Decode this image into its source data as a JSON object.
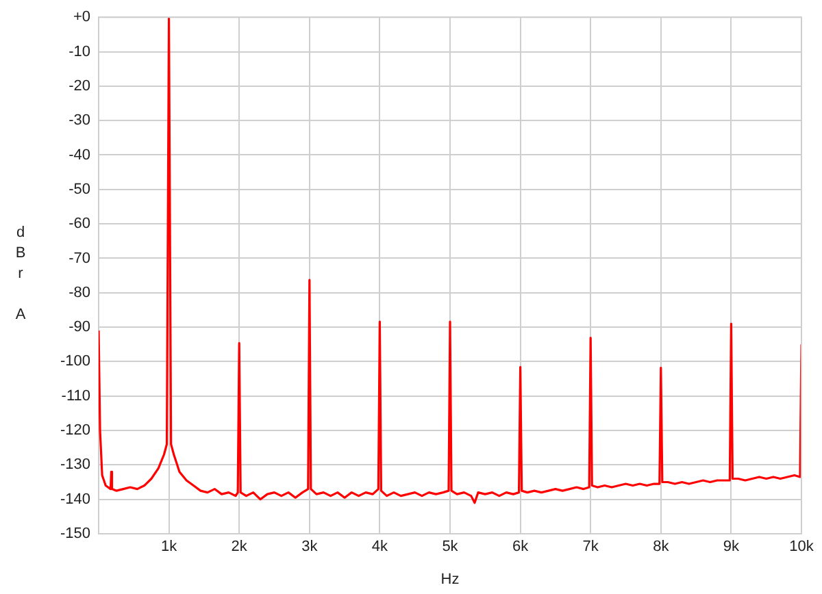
{
  "chart_data": {
    "type": "line",
    "xlabel": "Hz",
    "ylabel": "dBr A",
    "color": "#ff0000",
    "marker": "none",
    "grid": true,
    "xlim": [
      0,
      10000
    ],
    "ylim": [
      -150,
      0
    ],
    "xticks": [
      {
        "value": 1000,
        "label": "1k"
      },
      {
        "value": 2000,
        "label": "2k"
      },
      {
        "value": 3000,
        "label": "3k"
      },
      {
        "value": 4000,
        "label": "4k"
      },
      {
        "value": 5000,
        "label": "5k"
      },
      {
        "value": 6000,
        "label": "6k"
      },
      {
        "value": 7000,
        "label": "7k"
      },
      {
        "value": 8000,
        "label": "8k"
      },
      {
        "value": 9000,
        "label": "9k"
      },
      {
        "value": 10000,
        "label": "10k"
      }
    ],
    "yticks": [
      {
        "value": 0,
        "label": "+0"
      },
      -10,
      -20,
      -30,
      -40,
      -50,
      -60,
      -70,
      -80,
      -90,
      -100,
      -110,
      -120,
      -130,
      -140,
      -150
    ],
    "x": [
      0,
      20,
      50,
      100,
      170,
      180,
      190,
      250,
      350,
      450,
      550,
      650,
      750,
      850,
      930,
      970,
      1000,
      1030,
      1070,
      1150,
      1250,
      1350,
      1450,
      1550,
      1650,
      1750,
      1850,
      1950,
      1980,
      2000,
      2020,
      2100,
      2200,
      2300,
      2400,
      2500,
      2600,
      2700,
      2800,
      2900,
      2980,
      3000,
      3020,
      3100,
      3200,
      3300,
      3400,
      3500,
      3600,
      3700,
      3800,
      3900,
      3980,
      4000,
      4020,
      4100,
      4200,
      4300,
      4400,
      4500,
      4600,
      4700,
      4800,
      4900,
      4980,
      5000,
      5020,
      5100,
      5200,
      5300,
      5350,
      5400,
      5500,
      5600,
      5700,
      5800,
      5900,
      5980,
      6000,
      6020,
      6100,
      6200,
      6300,
      6400,
      6500,
      6600,
      6700,
      6800,
      6900,
      6980,
      7000,
      7020,
      7100,
      7200,
      7300,
      7400,
      7500,
      7600,
      7700,
      7800,
      7900,
      7980,
      8000,
      8020,
      8100,
      8200,
      8300,
      8400,
      8500,
      8600,
      8700,
      8800,
      8900,
      8980,
      9000,
      9020,
      9100,
      9200,
      9300,
      9400,
      9500,
      9600,
      9700,
      9800,
      9900,
      9980,
      10000
    ],
    "values": [
      -91,
      -120,
      -133,
      -136,
      -137,
      -132,
      -137,
      -137.5,
      -137,
      -136.5,
      -137,
      -136,
      -134,
      -131,
      -127,
      -124,
      0,
      -124,
      -127,
      -132,
      -134.5,
      -136,
      -137.5,
      -138,
      -137,
      -138.5,
      -138,
      -139,
      -138,
      -94.6,
      -138,
      -139,
      -138,
      -140,
      -138.5,
      -138,
      -139,
      -138,
      -139.5,
      -138,
      -137,
      -76.3,
      -137,
      -138.5,
      -138,
      -139,
      -138,
      -139.5,
      -138,
      -139,
      -138,
      -138.5,
      -137,
      -88.4,
      -137.5,
      -139,
      -138,
      -139,
      -138.5,
      -138,
      -139,
      -138,
      -138.5,
      -138,
      -137.5,
      -88.4,
      -137.5,
      -138.5,
      -138,
      -139,
      -141,
      -138,
      -138.5,
      -138,
      -139,
      -138,
      -138.5,
      -138,
      -101.6,
      -137.5,
      -138,
      -137.5,
      -138,
      -137.5,
      -137,
      -137.5,
      -137,
      -136.5,
      -137,
      -136.5,
      -93.1,
      -136,
      -136.5,
      -136,
      -136.5,
      -136,
      -135.5,
      -136,
      -135.5,
      -136,
      -135.5,
      -135.5,
      -101.8,
      -135,
      -135,
      -135.5,
      -135,
      -135.5,
      -135,
      -134.5,
      -135,
      -134.5,
      -134.5,
      -134.5,
      -89,
      -134,
      -134,
      -134.5,
      -134,
      -133.5,
      -134,
      -133.5,
      -134,
      -133.5,
      -133,
      -133.5,
      -95
    ]
  }
}
